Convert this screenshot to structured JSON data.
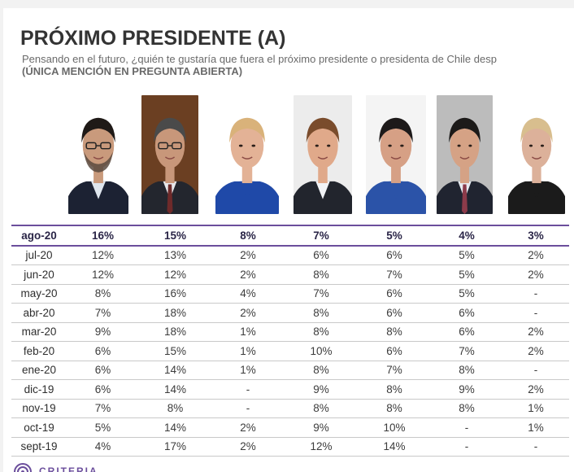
{
  "header": {
    "title": "PRÓXIMO PRESIDENTE (A)",
    "subtitle": "Pensando en el futuro, ¿quién te gustaría que fuera el próximo presidente o presidenta de Chile desp",
    "note": "(ÚNICA MENCIÓN EN PREGUNTA ABIERTA)"
  },
  "footer": {
    "brand": "CRITERIA"
  },
  "chart_data": {
    "type": "table",
    "title": "PRÓXIMO PRESIDENTE (A)",
    "columns": [
      "candidate-1",
      "candidate-2",
      "candidate-3",
      "candidate-4",
      "candidate-5",
      "candidate-6",
      "candidate-7"
    ],
    "rows": [
      {
        "label": "ago-20",
        "values": [
          "16%",
          "15%",
          "8%",
          "7%",
          "5%",
          "4%",
          "3%"
        ]
      },
      {
        "label": "jul-20",
        "values": [
          "12%",
          "13%",
          "2%",
          "6%",
          "6%",
          "5%",
          "2%"
        ]
      },
      {
        "label": "jun-20",
        "values": [
          "12%",
          "12%",
          "2%",
          "8%",
          "7%",
          "5%",
          "2%"
        ]
      },
      {
        "label": "may-20",
        "values": [
          "8%",
          "16%",
          "4%",
          "7%",
          "6%",
          "5%",
          "-"
        ]
      },
      {
        "label": "abr-20",
        "values": [
          "7%",
          "18%",
          "2%",
          "8%",
          "6%",
          "6%",
          "-"
        ]
      },
      {
        "label": "mar-20",
        "values": [
          "9%",
          "18%",
          "1%",
          "8%",
          "8%",
          "6%",
          "2%"
        ]
      },
      {
        "label": "feb-20",
        "values": [
          "6%",
          "15%",
          "1%",
          "10%",
          "6%",
          "7%",
          "2%"
        ]
      },
      {
        "label": "ene-20",
        "values": [
          "6%",
          "14%",
          "1%",
          "8%",
          "7%",
          "8%",
          "-"
        ]
      },
      {
        "label": "dic-19",
        "values": [
          "6%",
          "14%",
          "-",
          "9%",
          "8%",
          "9%",
          "2%"
        ]
      },
      {
        "label": "nov-19",
        "values": [
          "7%",
          "8%",
          "-",
          "8%",
          "8%",
          "8%",
          "1%"
        ]
      },
      {
        "label": "oct-19",
        "values": [
          "5%",
          "14%",
          "2%",
          "9%",
          "10%",
          "-",
          "1%"
        ]
      },
      {
        "label": "sept-19",
        "values": [
          "4%",
          "17%",
          "2%",
          "12%",
          "14%",
          "-",
          "-"
        ]
      }
    ],
    "highlight_row": "ago-20",
    "colors": {
      "accent": "#6b4e9c",
      "text": "#3c3c3c",
      "rule": "#c9c9c9"
    }
  },
  "photos": [
    {
      "bg": "#ffffff",
      "hair": "#1f1a17",
      "skin": "#c99a7c",
      "suit": "#1c2233",
      "shirt": "#dfe6ee",
      "glasses": true,
      "beard": true
    },
    {
      "bg": "#6b3f22",
      "hair": "#4a4a4a",
      "skin": "#c8977a",
      "suit": "#23262e",
      "shirt": "#e6e8ec",
      "glasses": true,
      "tie": "#6e2a2a"
    },
    {
      "bg": "#ffffff",
      "hair": "#d9b27a",
      "skin": "#e3b296",
      "suit": "#1f49a8",
      "shirt": "#1f49a8"
    },
    {
      "bg": "#ececec",
      "hair": "#7a4c2c",
      "skin": "#e0a98a",
      "suit": "#22252d",
      "shirt": "#f1f3f6"
    },
    {
      "bg": "#f4f4f4",
      "hair": "#1d1a1a",
      "skin": "#d6a085",
      "suit": "#2b53a8",
      "shirt": "#2b53a8"
    },
    {
      "bg": "#bcbcbc",
      "hair": "#1c1a19",
      "skin": "#d5a285",
      "suit": "#202430",
      "shirt": "#e7ebf1",
      "tie": "#8c3b4a"
    },
    {
      "bg": "#ffffff",
      "hair": "#d8be8e",
      "skin": "#dcb19a",
      "suit": "#1b1b1b",
      "shirt": "#1b1b1b"
    }
  ]
}
